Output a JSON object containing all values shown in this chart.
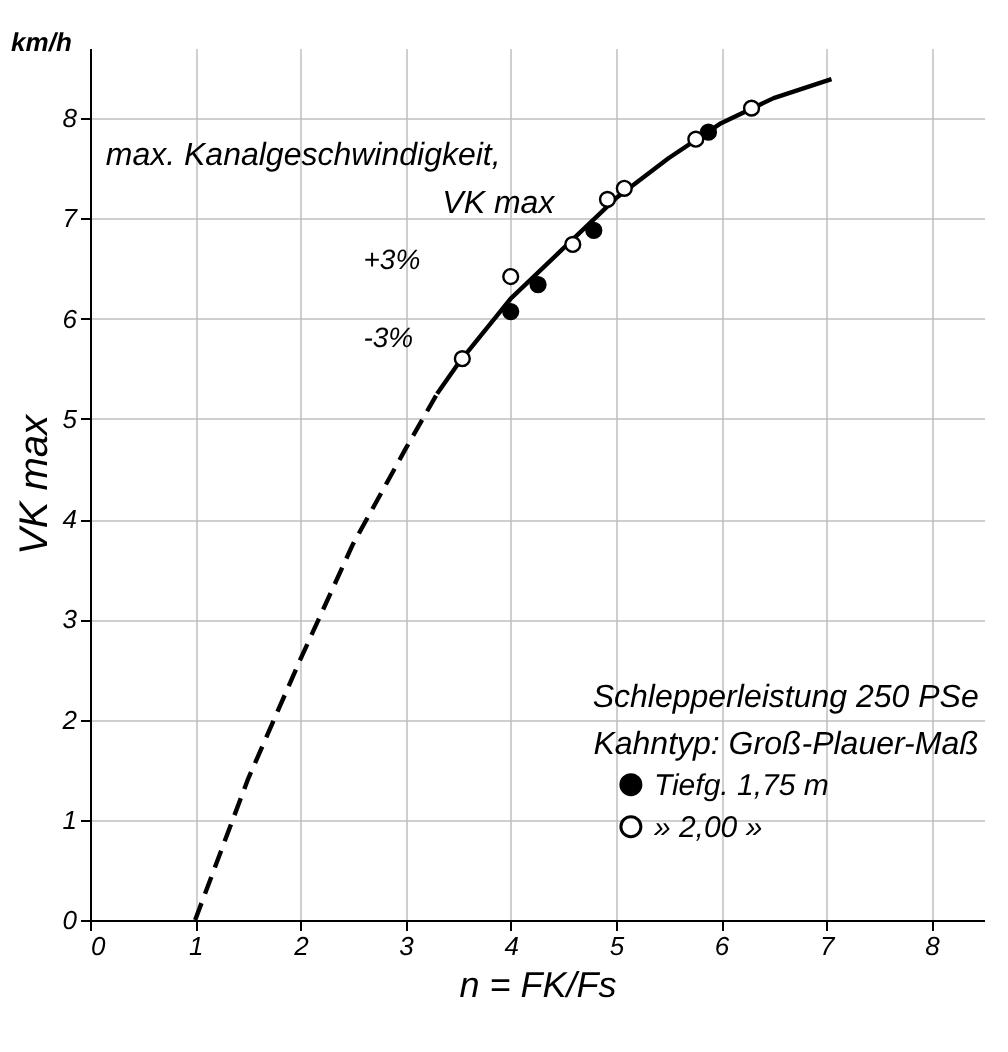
{
  "chart_data": {
    "type": "scatter",
    "xlabel": "n = FK/Fs",
    "ylabel": "VK max",
    "annotations": [
      "km/h",
      "max. Kanalgeschwindigkeit,",
      "VK max",
      "+3%",
      "-3%",
      "Schlepperleistung 250 PSe",
      "Kahntyp: Groß-Plauer-Maß"
    ],
    "series": [
      {
        "type": "line",
        "marker": "none",
        "line_style": "dashed",
        "color": "#000000",
        "x": [
          1,
          1.5,
          2,
          2.5,
          3,
          3.3
        ],
        "values": [
          0,
          1.4,
          2.6,
          3.75,
          4.7,
          5.25
        ]
      },
      {
        "type": "line",
        "marker": "none",
        "line_style": "solid",
        "color": "#000000",
        "x": [
          3.3,
          3.5,
          4,
          4.5,
          5,
          5.5,
          6,
          6.5,
          7.05
        ],
        "values": [
          5.25,
          5.55,
          6.2,
          6.7,
          7.2,
          7.6,
          7.95,
          8.2,
          8.39
        ]
      },
      {
        "name": "Tiefg. 1,75 m",
        "marker": "circle",
        "color": "#000000",
        "x": [
          4.0,
          4.26,
          4.79,
          5.88
        ],
        "values": [
          6.07,
          6.34,
          6.88,
          7.86
        ]
      },
      {
        "name": "» 2,00 »",
        "marker": "circle",
        "color": "#ffffff",
        "x": [
          3.54,
          4.0,
          4.59,
          4.92,
          5.08,
          5.76,
          6.29
        ],
        "values": [
          5.6,
          6.42,
          6.74,
          7.19,
          7.3,
          7.79,
          8.1
        ]
      }
    ],
    "legend": "bottom right",
    "grid": true,
    "xlim": [
      0,
      8.5
    ],
    "ylim": [
      0,
      8.7
    ],
    "xticks": [
      0,
      1,
      2,
      3,
      4,
      5,
      6,
      7,
      8
    ],
    "yticks": [
      0,
      1,
      2,
      3,
      4,
      5,
      6,
      7,
      8
    ]
  }
}
